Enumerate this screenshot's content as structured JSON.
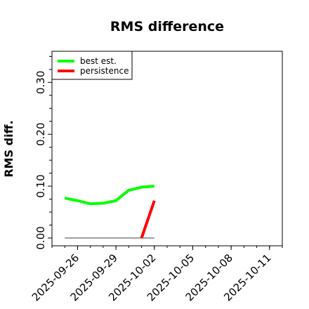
{
  "chart_data": {
    "type": "line",
    "title": "RMS difference",
    "xlabel": "",
    "ylabel": "RMS diff.",
    "x_ticks": [
      "2025-09-26",
      "2025-09-29",
      "2025-10-02",
      "2025-10-05",
      "2025-10-08",
      "2025-10-11"
    ],
    "xlim": [
      "2025-09-24",
      "2025-10-12"
    ],
    "y_ticks": [
      "0.00",
      "0.10",
      "0.20",
      "0.30"
    ],
    "ylim": [
      -0.015,
      0.36
    ],
    "grid": false,
    "legend_position": "top-left",
    "series": [
      {
        "name": "best est.",
        "color": "#00ff00",
        "points": [
          [
            "2025-09-25",
            0.077
          ],
          [
            "2025-09-26",
            0.072
          ],
          [
            "2025-09-27",
            0.066
          ],
          [
            "2025-09-28",
            0.067
          ],
          [
            "2025-09-29",
            0.072
          ],
          [
            "2025-09-30",
            0.092
          ],
          [
            "2025-10-01",
            0.098
          ],
          [
            "2025-10-02",
            0.1
          ]
        ]
      },
      {
        "name": "persistence",
        "color": "#ff0000",
        "points": [
          [
            "2025-10-01",
            0.0
          ],
          [
            "2025-10-02",
            0.072
          ]
        ]
      }
    ],
    "reference_line": {
      "color": "#808080",
      "points": [
        [
          "2025-09-25",
          0.0
        ],
        [
          "2025-10-02",
          0.0
        ]
      ]
    }
  }
}
